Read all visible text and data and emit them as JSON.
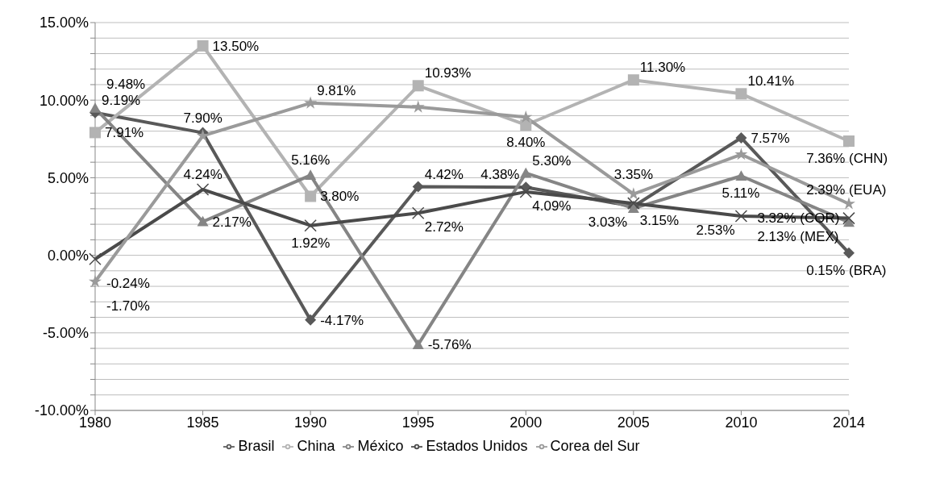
{
  "chart_data": {
    "type": "line",
    "categories": [
      "1980",
      "1985",
      "1990",
      "1995",
      "2000",
      "2005",
      "2010",
      "2014"
    ],
    "series": [
      {
        "name": "Brasil",
        "color": "#595959",
        "marker": "diamond",
        "values": [
          9.19,
          7.9,
          -4.17,
          4.42,
          4.38,
          3.15,
          7.57,
          0.15
        ],
        "value_labels": [
          "9.19%",
          "7.90%",
          "-4.17%",
          "4.42%",
          "4.38%",
          "3.15%",
          "7.57%",
          "0.15% (BRA)"
        ]
      },
      {
        "name": "China",
        "color": "#b3b3b3",
        "marker": "square",
        "values": [
          7.91,
          13.5,
          3.8,
          10.93,
          8.4,
          11.3,
          10.41,
          7.36
        ],
        "value_labels": [
          "7.91%",
          "13.50%",
          "3.80%",
          "10.93%",
          "8.40%",
          "11.30%",
          "10.41%",
          "7.36% (CHN)"
        ]
      },
      {
        "name": "México",
        "color": "#858585",
        "marker": "triangle",
        "values": [
          9.48,
          2.17,
          5.16,
          -5.76,
          5.3,
          3.03,
          5.11,
          2.13
        ],
        "value_labels": [
          "9.48%",
          "2.17%",
          "5.16%",
          "-5.76%",
          "5.30%",
          "3.03%",
          "5.11%",
          "2.13% (MEX)"
        ]
      },
      {
        "name": "Estados Unidos",
        "color": "#4a4a4a",
        "marker": "cross",
        "values": [
          -0.24,
          4.24,
          1.92,
          2.72,
          4.09,
          3.35,
          2.53,
          2.39
        ],
        "value_labels": [
          "-0.24%",
          "4.24%",
          "1.92%",
          "2.72%",
          "4.09%",
          "3.35%",
          "2.53%",
          "2.39% (EUA)"
        ]
      },
      {
        "name": "Corea del Sur",
        "color": "#9a9a9a",
        "marker": "star",
        "values": [
          -1.7,
          7.7,
          9.81,
          9.55,
          8.9,
          3.95,
          6.5,
          3.32
        ],
        "value_labels": [
          "-1.70%",
          null,
          "9.81%",
          null,
          null,
          null,
          null,
          "3.32% (COR)"
        ]
      }
    ],
    "ylim": [
      -10,
      15
    ],
    "yticks": [
      {
        "value": -10,
        "label": "-10.00%"
      },
      {
        "value": -9,
        "label": null
      },
      {
        "value": -8,
        "label": null
      },
      {
        "value": -7,
        "label": null
      },
      {
        "value": -6,
        "label": null
      },
      {
        "value": -5,
        "label": "-5.00%"
      },
      {
        "value": -4,
        "label": null
      },
      {
        "value": -3,
        "label": null
      },
      {
        "value": -2,
        "label": null
      },
      {
        "value": -1,
        "label": null
      },
      {
        "value": 0,
        "label": "0.00%"
      },
      {
        "value": 1,
        "label": null
      },
      {
        "value": 2,
        "label": null
      },
      {
        "value": 3,
        "label": null
      },
      {
        "value": 4,
        "label": null
      },
      {
        "value": 5,
        "label": "5.00%"
      },
      {
        "value": 6,
        "label": null
      },
      {
        "value": 7,
        "label": null
      },
      {
        "value": 8,
        "label": null
      },
      {
        "value": 9,
        "label": null
      },
      {
        "value": 10,
        "label": "10.00%"
      },
      {
        "value": 11,
        "label": null
      },
      {
        "value": 12,
        "label": null
      },
      {
        "value": 13,
        "label": null
      },
      {
        "value": 14,
        "label": null
      },
      {
        "value": 15,
        "label": "15.00%"
      }
    ],
    "grid": "y",
    "legend": "bottom"
  }
}
